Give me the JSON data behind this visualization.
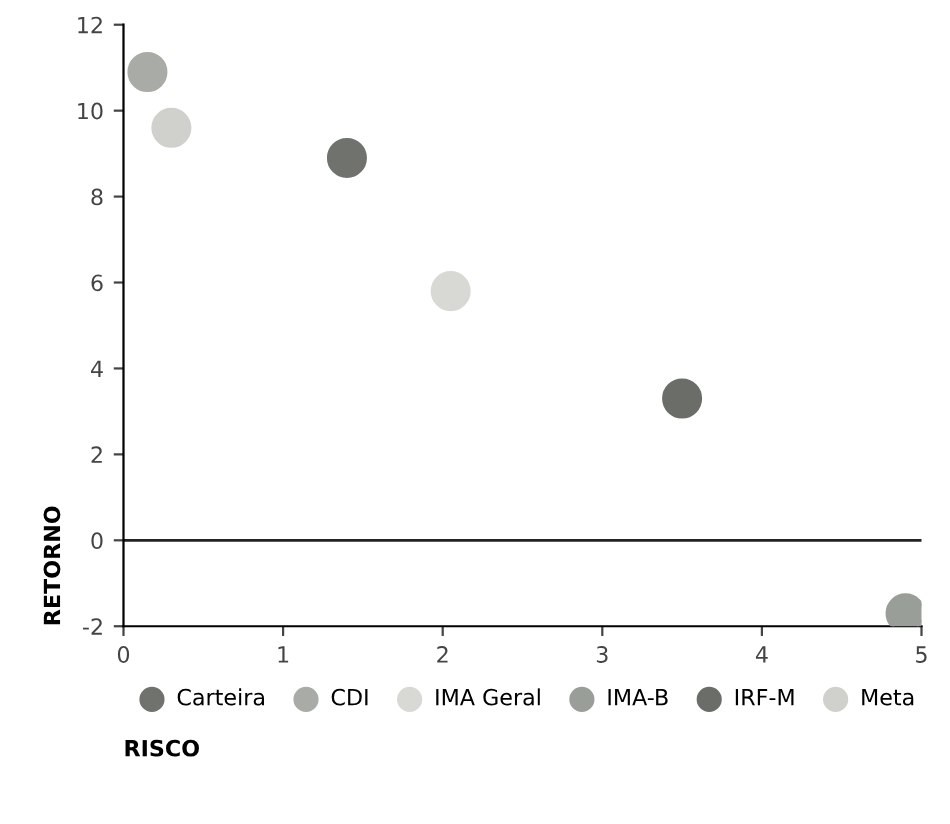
{
  "chart_data": {
    "type": "scatter",
    "xlabel": "RISCO",
    "ylabel": "RETORNO",
    "xlim": [
      0,
      5
    ],
    "ylim": [
      -2,
      12
    ],
    "xticks": [
      0,
      1,
      2,
      3,
      4,
      5
    ],
    "yticks": [
      -2,
      0,
      2,
      4,
      6,
      8,
      10,
      12
    ],
    "grid": false,
    "legend": "bottom",
    "marker": "circle",
    "ref_lines": [
      {
        "axis": "y",
        "value": 0,
        "color": "#222222"
      }
    ],
    "series": [
      {
        "name": "Carteira",
        "color": "#6f726d",
        "x": [
          1.4
        ],
        "values": [
          8.9
        ]
      },
      {
        "name": "CDI",
        "color": "#a9aca6",
        "x": [
          0.15
        ],
        "values": [
          10.9
        ]
      },
      {
        "name": "IMA Geral",
        "color": "#d8d9d5",
        "x": [
          2.05
        ],
        "values": [
          5.8
        ]
      },
      {
        "name": "IMA-B",
        "color": "#9a9e98",
        "x": [
          4.9
        ],
        "values": [
          -1.7
        ]
      },
      {
        "name": "IRF-M",
        "color": "#6a6d68",
        "x": [
          3.5
        ],
        "values": [
          3.3
        ]
      },
      {
        "name": "Meta",
        "color": "#d0d1cd",
        "x": [
          0.3
        ],
        "values": [
          9.6
        ]
      }
    ]
  }
}
